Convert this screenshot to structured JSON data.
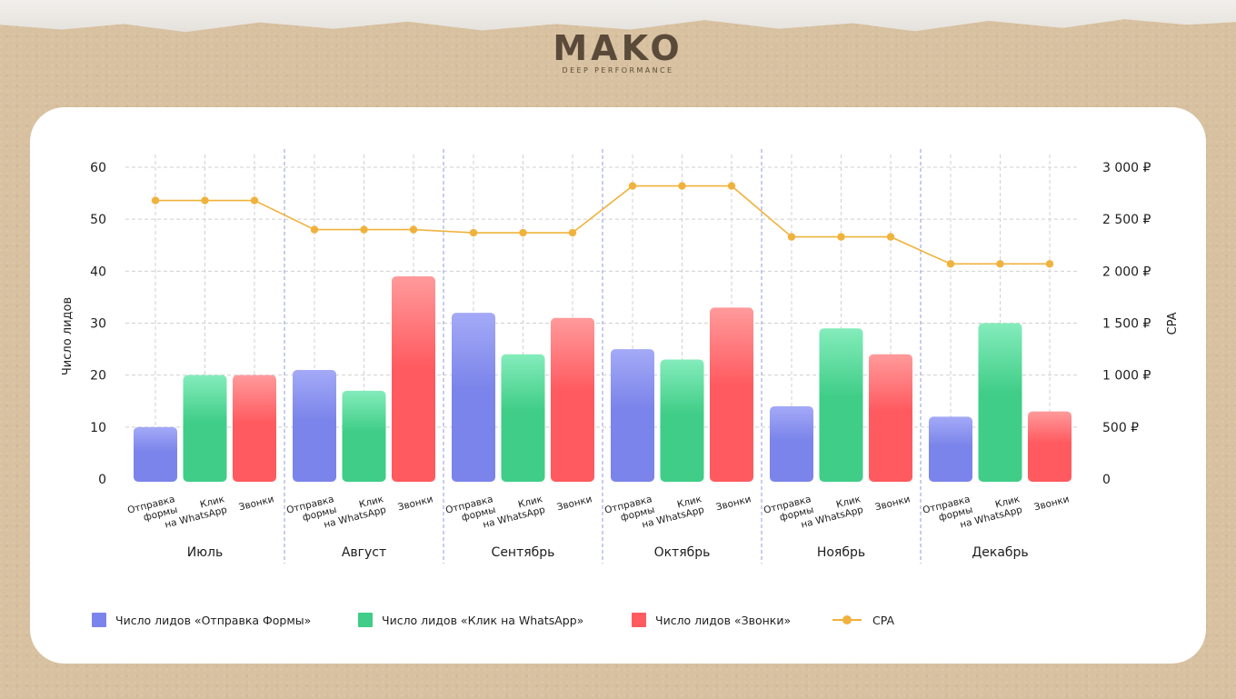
{
  "brand": {
    "name": "MAKO",
    "tagline": "DEEP PERFORMANCE"
  },
  "legend": {
    "forms": "Число лидов «Отправка Формы»",
    "whatsapp": "Число лидов «Клик на WhatsApp»",
    "calls": "Число лидов «Звонки»",
    "cpa": "CPA"
  },
  "colors": {
    "forms": "#7b84ea",
    "whatsapp": "#3fcd87",
    "calls": "#ff5a5f",
    "cpa": "#f0b23c",
    "grid": "#d0d0d0",
    "month_divider": "#8f9bdc"
  },
  "chart_data": {
    "type": "bar",
    "ylabel": "Число лидов",
    "y2label": "CPA",
    "ylim": [
      0,
      60
    ],
    "yticks": [
      "0",
      "10",
      "20",
      "30",
      "40",
      "50",
      "60"
    ],
    "y2lim": [
      0,
      3000
    ],
    "y2ticks": [
      "0",
      "500 ₽",
      "1 000 ₽",
      "1 500 ₽",
      "2 000 ₽",
      "2 500 ₽",
      "3 000 ₽"
    ],
    "grid": true,
    "legend_position": "bottom",
    "months": [
      "Июль",
      "Август",
      "Сентябрь",
      "Октябрь",
      "Ноябрь",
      "Декабрь"
    ],
    "subcategories": [
      [
        "Отправка",
        "формы"
      ],
      [
        "Клик",
        "на WhatsApp"
      ],
      [
        "Звонки"
      ]
    ],
    "series": [
      {
        "name": "Число лидов «Отправка Формы»",
        "key": "forms",
        "values": [
          10,
          21,
          32,
          25,
          14,
          12
        ]
      },
      {
        "name": "Число лидов «Клик на WhatsApp»",
        "key": "whatsapp",
        "values": [
          20,
          17,
          24,
          23,
          29,
          30
        ]
      },
      {
        "name": "Число лидов «Звонки»",
        "key": "calls",
        "values": [
          20,
          39,
          31,
          33,
          24,
          13
        ]
      }
    ],
    "cpa": {
      "name": "CPA",
      "axis": "right",
      "values": [
        2680,
        2400,
        2370,
        2820,
        2330,
        2070
      ]
    }
  }
}
